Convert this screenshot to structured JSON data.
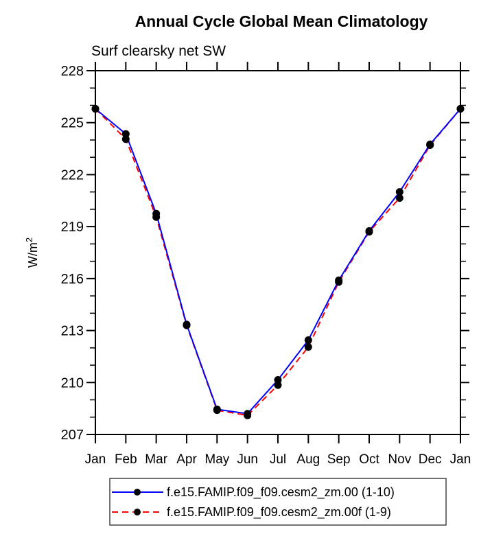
{
  "chart_data": {
    "type": "line",
    "title": "Annual Cycle Global Mean Climatology",
    "subtitle": "Surf clearsky net SW",
    "ylabel": {
      "base": "W/m",
      "exp": "2"
    },
    "categories": [
      "Jan",
      "Feb",
      "Mar",
      "Apr",
      "May",
      "Jun",
      "Jul",
      "Aug",
      "Sep",
      "Oct",
      "Nov",
      "Dec",
      "Jan"
    ],
    "series": [
      {
        "name": "f.e15.FAMIP.f09_f09.cesm2_zm.00 (1-10)",
        "color": "#0000ff",
        "style": "solid",
        "values": [
          225.8,
          224.35,
          219.75,
          213.35,
          208.45,
          208.2,
          210.15,
          212.45,
          215.9,
          218.75,
          221.0,
          223.75,
          225.8
        ]
      },
      {
        "name": "f.e15.FAMIP.f09_f09.cesm2_zm.00f (1-9)",
        "color": "#ff0000",
        "style": "dashed",
        "values": [
          225.8,
          224.05,
          219.55,
          213.3,
          208.4,
          208.1,
          209.85,
          212.05,
          215.8,
          218.7,
          220.65,
          223.7,
          225.8
        ]
      }
    ],
    "ylim": [
      207,
      228
    ],
    "ytick_step": 3,
    "yminor_step": 1,
    "yticks": [
      207,
      210,
      213,
      216,
      219,
      222,
      225,
      228
    ],
    "marker_color": "#000000",
    "axis_color": "#000000",
    "grid": false,
    "legend_position": "bottom"
  }
}
